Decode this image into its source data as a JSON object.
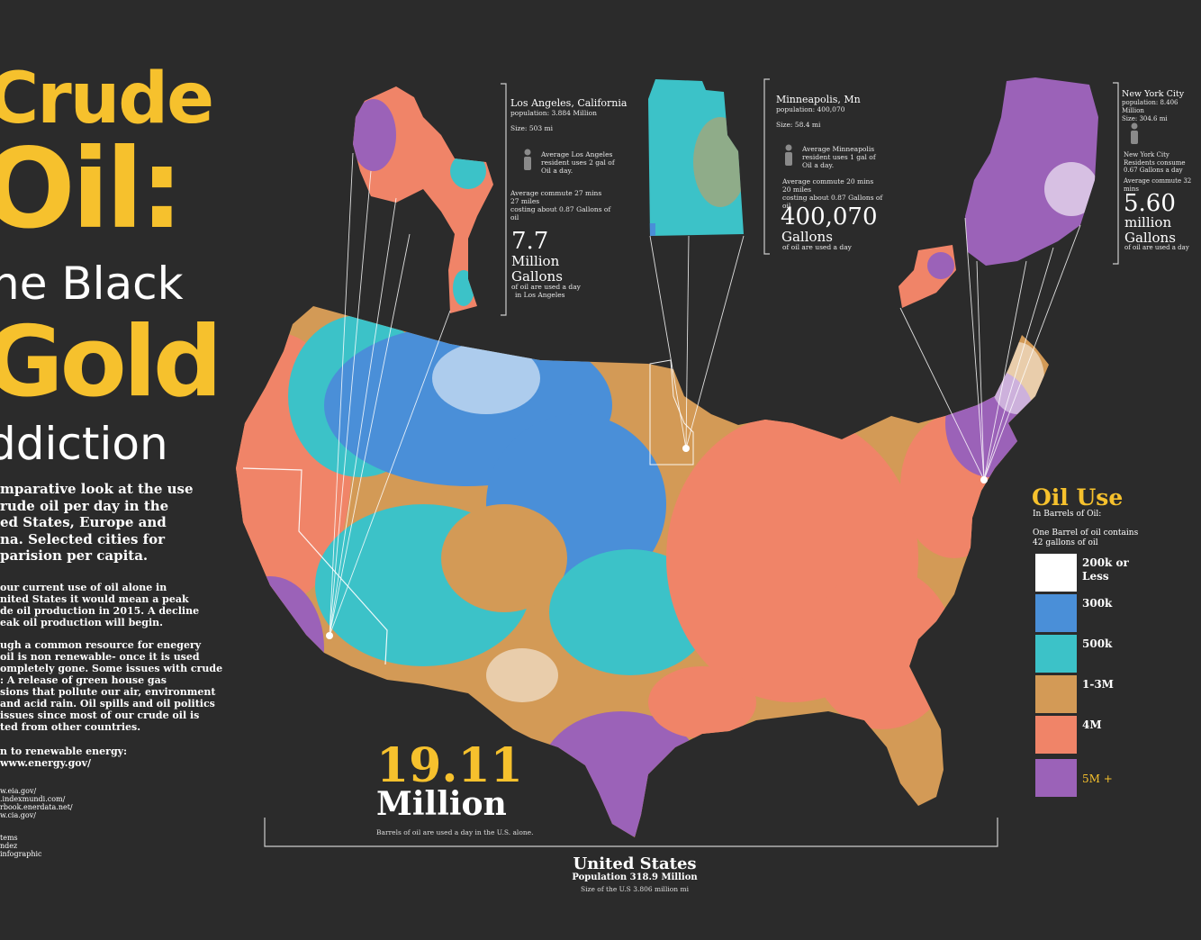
{
  "title": {
    "line1": "Crude",
    "line2": "Oil:",
    "line3": "he Black",
    "line4": "Gold",
    "line5": "ddiction"
  },
  "intro_lines": [
    "mparative look at the use",
    "rude oil per day in the",
    "ed States, Europe and",
    "na. Selected cities for",
    "parision per capita."
  ],
  "body1_lines": [
    "our current use of oil alone in",
    "nited States it would mean a peak",
    "de oil production in 2015. A decline",
    "eak oil production will begin."
  ],
  "body2_lines": [
    "ugh a common resource for enegery",
    "oil is non renewable- once it is used",
    "ompletely gone. Some issues with crude",
    ": A release of green house gas",
    "sions that pollute our air, environment",
    "and acid rain. Oil spills and oil politics",
    "issues since most of our crude oil is",
    "ted from other countries."
  ],
  "body3_lines": [
    "n to renewable energy:",
    "www.energy.gov/"
  ],
  "refs": [
    "w.eia.gov/",
    ".indexmundi.com/",
    "rbook.enerdata.net/",
    "w.cia.gov/"
  ],
  "credits": [
    "tems",
    "ndez",
    "infographic"
  ],
  "cities": {
    "la": {
      "name": "Los Angeles, California",
      "population": "population: 3.884 Million",
      "size": "Size: 503 mi",
      "resident_use": "Average Los Angeles resident uses 2 gal of Oil a day.",
      "commute": [
        "Average commute 27 mins",
        "27 miles",
        "costing about 0.87 Gallons of oil"
      ],
      "big_value": "7.7",
      "unit1": "Million",
      "unit2": "Gallons",
      "caption": [
        "of oil are used a day",
        "in Los Angeles"
      ]
    },
    "mn": {
      "name": "Minneapolis, Mn",
      "population": "population: 400,070",
      "size": "Size: 58.4 mi",
      "resident_use": "Average Minneapolis resident uses 1 gal of Oil a day.",
      "commute": [
        "Average commute 20 mins",
        "20 miles",
        "costing about 0.87 Gallons of oil"
      ],
      "big_value": "400,070",
      "unit1": "Gallons",
      "caption": [
        "of oil are used a day"
      ]
    },
    "ny": {
      "name": "New York City",
      "population": "population: 8.406 Million",
      "size": "Size: 304.6 mi",
      "resident_use": "New York City Residents consume 0.67 Gallons a day",
      "commute": [
        "Average commute 32 mins"
      ],
      "big_value": "5.60",
      "unit1": "million",
      "unit2": "Gallons",
      "caption": [
        "of oil are used a day"
      ]
    }
  },
  "total": {
    "value": "19.11",
    "unit": "Million",
    "caption": "Barrels of oil are used a day in the U.S. alone."
  },
  "us": {
    "title": "United States",
    "population": "Population 318.9 Million",
    "size": "Size of the U.S 3.806 million mi"
  },
  "legend": {
    "title": "Oil Use",
    "subtitle": "In Barrels of Oil:",
    "note": "One Barrel of oil contains 42 gallons of oil",
    "items": [
      {
        "label": "200k or Less",
        "color": "#ffffff"
      },
      {
        "label": "300k",
        "color": "#4a8fd8"
      },
      {
        "label": "500k",
        "color": "#3cc2c8"
      },
      {
        "label": "1-3M",
        "color": "#d39a56"
      },
      {
        "label": "4M",
        "color": "#f08468"
      },
      {
        "label": "5M +",
        "color": "#9b62b8"
      }
    ]
  },
  "colors": {
    "accent": "#f6c12d",
    "background": "#2b2b2b"
  }
}
